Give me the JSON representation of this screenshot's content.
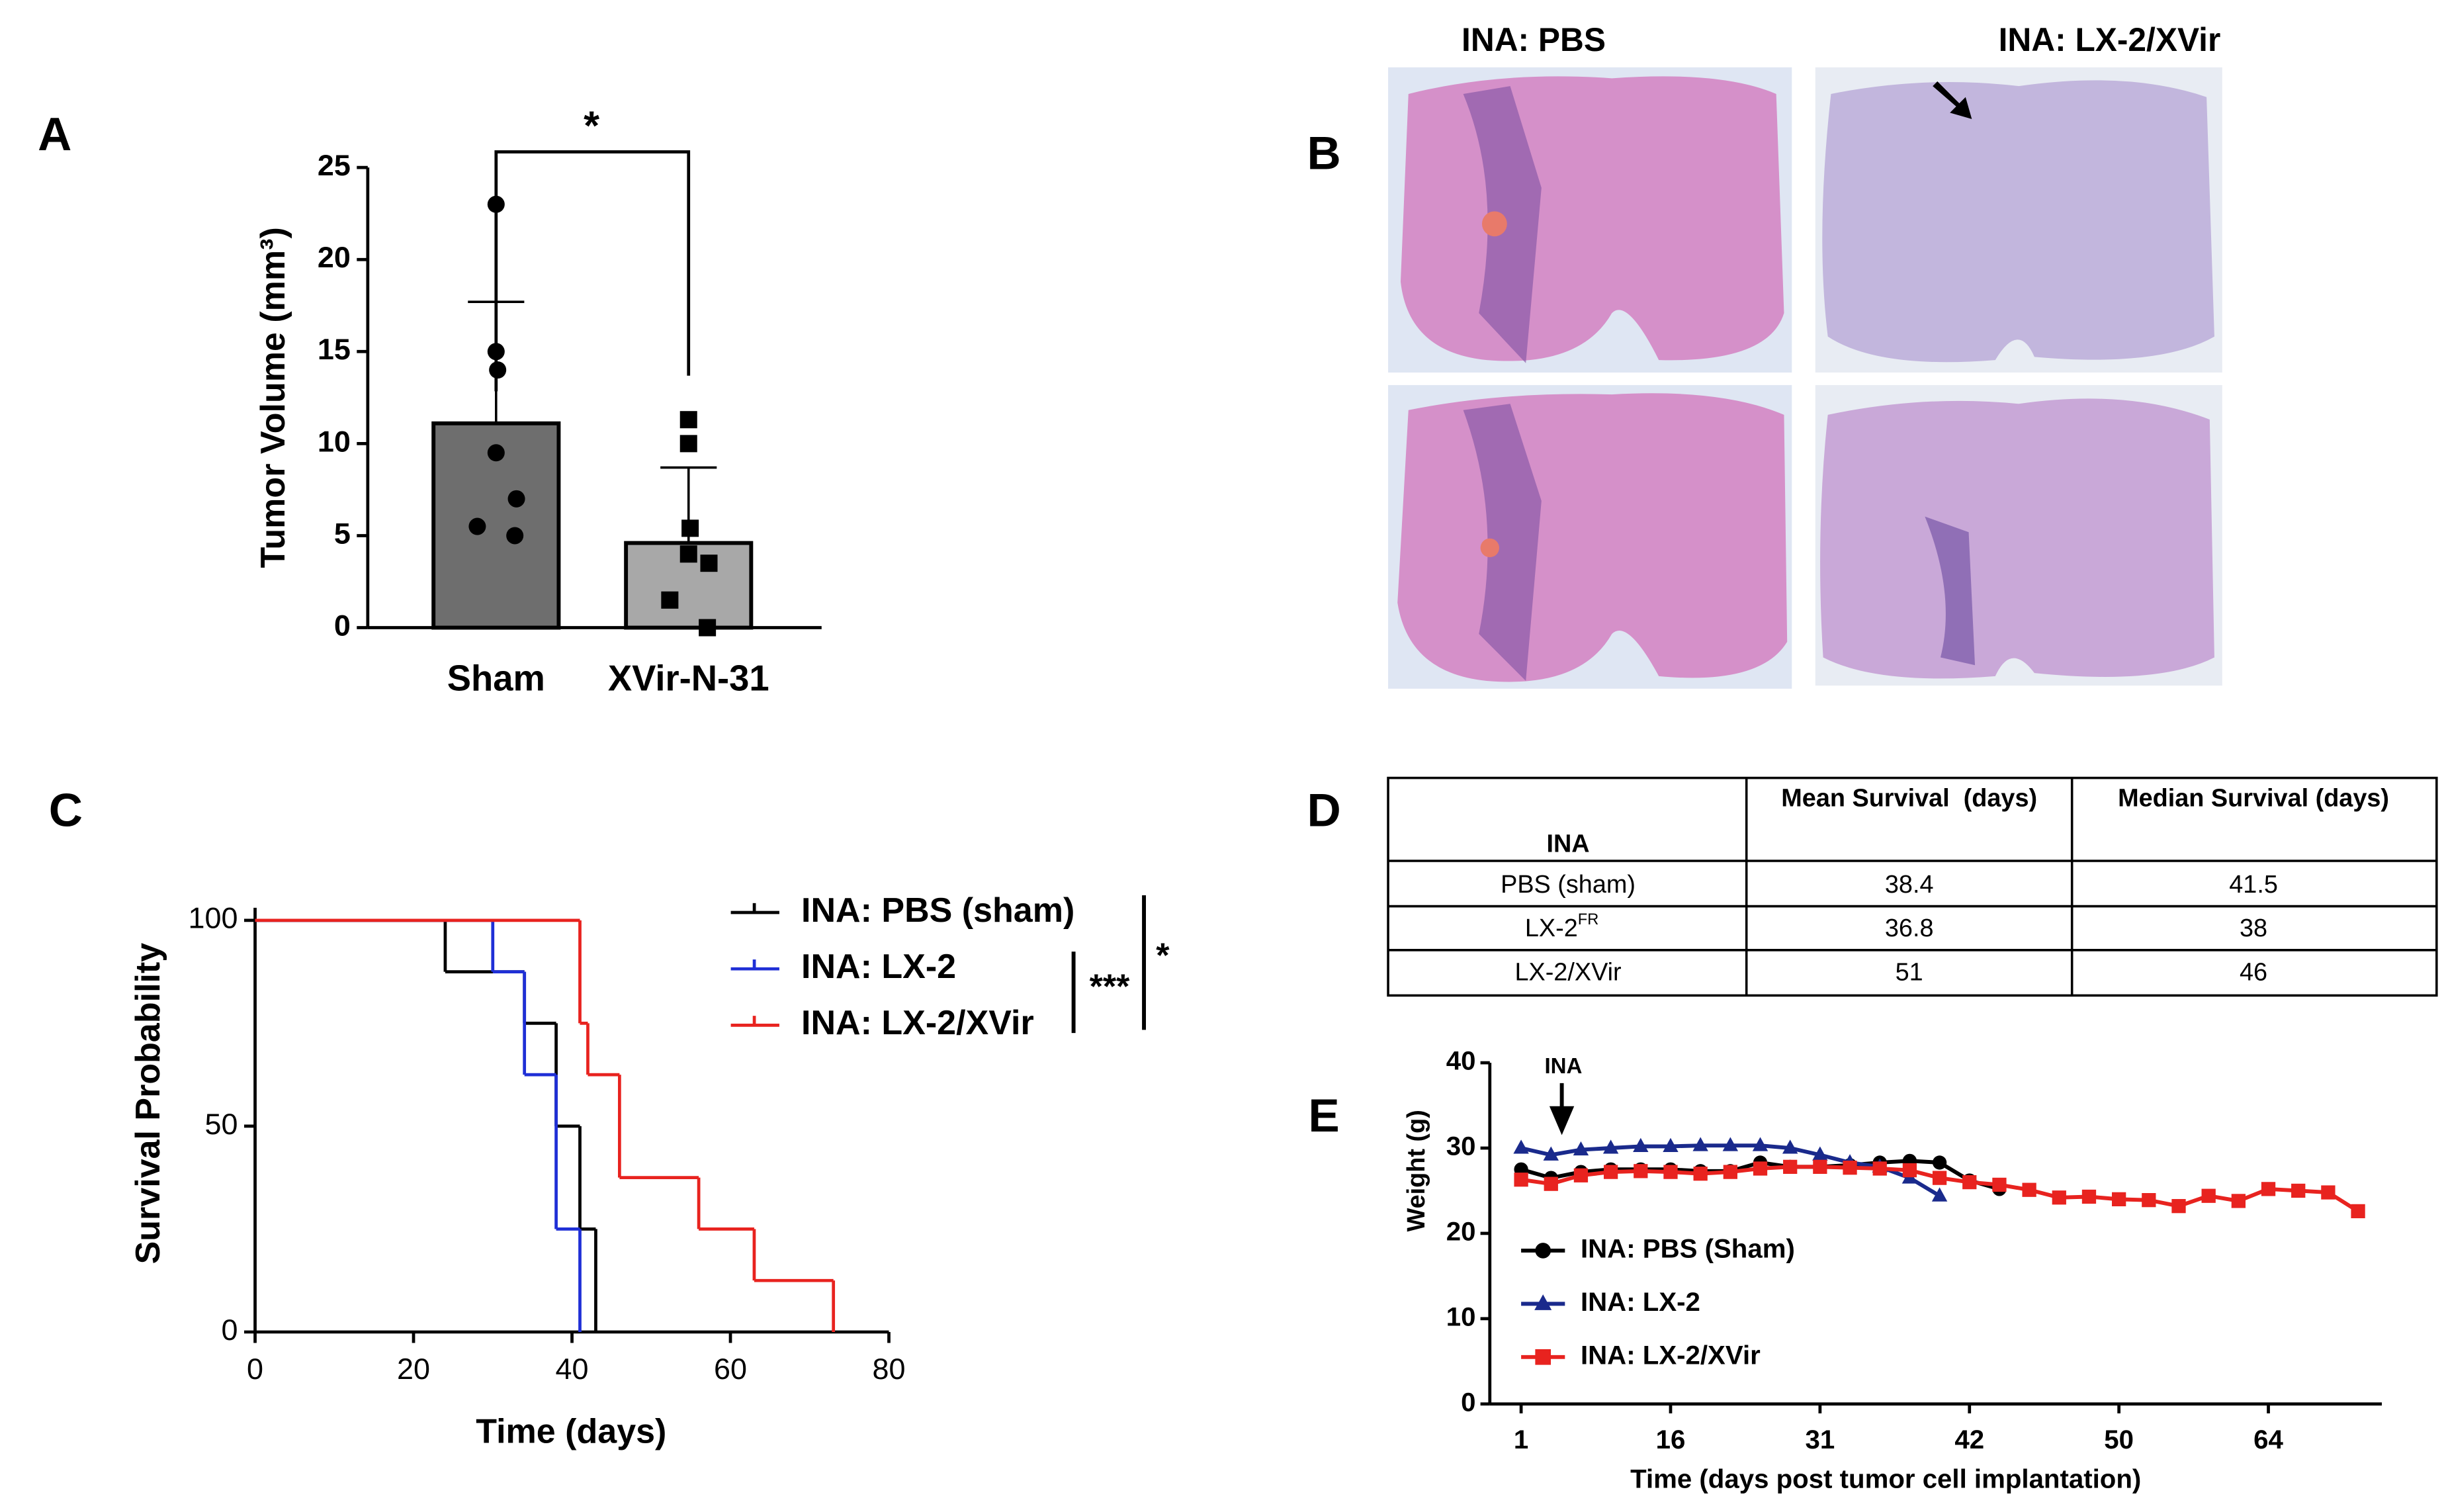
{
  "panel_labels": [
    "A",
    "B",
    "C",
    "D",
    "E"
  ],
  "chart_data": [
    {
      "type": "bar",
      "categories": [
        "Sham",
        "XVir-N-31"
      ],
      "values": [
        11.1,
        4.6
      ],
      "errors": [
        6.6,
        4.1
      ],
      "colors": [
        "#6e6e6e",
        "#a8a8a8"
      ],
      "markers": [
        "circle",
        "square"
      ],
      "points": [
        [
          23,
          15,
          14,
          9.5,
          7,
          5.5,
          5
        ],
        [
          11.3,
          10,
          5.4,
          4,
          3.5,
          1.5,
          0
        ]
      ],
      "ylim": [
        0,
        25
      ],
      "yticks": [
        0,
        5,
        10,
        15,
        20,
        25
      ],
      "ylabel": "Tumor Volume (mm³)",
      "significance": "*"
    },
    {
      "type": "step",
      "xlabel": "Time (days)",
      "ylabel": "Survival Probability",
      "xlim": [
        0,
        80
      ],
      "xticks": [
        0,
        20,
        40,
        60,
        80
      ],
      "ylim": [
        0,
        100
      ],
      "yticks": [
        0,
        50,
        100
      ],
      "series": [
        {
          "name": "INA: PBS (sham)",
          "color": "#000000",
          "x": [
            0,
            24,
            34,
            38,
            41,
            43
          ],
          "values": [
            100,
            87.5,
            75,
            50,
            25,
            0
          ]
        },
        {
          "name": "INA: LX-2",
          "color": "#1f2fd6",
          "x": [
            0,
            30,
            34,
            38,
            41
          ],
          "values": [
            100,
            87.5,
            62.5,
            25,
            0
          ]
        },
        {
          "name": "INA: LX-2/XVir",
          "color": "#e8231f",
          "x": [
            0,
            41,
            42,
            46,
            56,
            63,
            73
          ],
          "values": [
            100,
            75,
            62.5,
            37.5,
            25,
            12.5,
            0
          ]
        }
      ],
      "significance": [
        "***",
        "*"
      ]
    },
    {
      "type": "line",
      "xlabel": "Time (days post tumor cell implantation)",
      "ylabel": "Weight (g)",
      "categories": [
        "1",
        null,
        null,
        null,
        null,
        "16",
        null,
        null,
        null,
        null,
        "31",
        null,
        null,
        null,
        null,
        "42",
        null,
        null,
        null,
        null,
        "50",
        null,
        null,
        null,
        null,
        "64",
        null,
        null,
        null
      ],
      "ylim": [
        0,
        40
      ],
      "yticks": [
        0,
        10,
        20,
        30,
        40
      ],
      "annotation": "INA",
      "series": [
        {
          "name": "INA: PBS (Sham)",
          "color": "#000000",
          "marker": "circle",
          "values": [
            27.5,
            26.5,
            27.2,
            27.5,
            27.5,
            27.5,
            27.3,
            27.3,
            28.3,
            27.8,
            27.8,
            28,
            28.3,
            28.5,
            28.3,
            26.2,
            25.2,
            null,
            null,
            null,
            null,
            null,
            null,
            null,
            null,
            null,
            null,
            null,
            null
          ]
        },
        {
          "name": "INA: LX-2",
          "color": "#1a2a8c",
          "marker": "triangle",
          "values": [
            30,
            29.2,
            29.8,
            30,
            30.2,
            30.2,
            30.3,
            30.3,
            30.3,
            30,
            29.2,
            28.3,
            27.8,
            26.5,
            24.4,
            null,
            null,
            null,
            null,
            null,
            null,
            null,
            null,
            null,
            null,
            null,
            null,
            null,
            null
          ]
        },
        {
          "name": "INA: LX-2/XVir",
          "color": "#e8231f",
          "marker": "square",
          "values": [
            26.3,
            25.8,
            26.8,
            27.2,
            27.3,
            27.2,
            27,
            27.2,
            27.6,
            27.8,
            27.8,
            27.7,
            27.6,
            27.4,
            26.5,
            26,
            25.7,
            25.1,
            24.2,
            24.3,
            24,
            23.9,
            23.2,
            24.4,
            23.8,
            25.2,
            25,
            24.8,
            22.6
          ]
        }
      ]
    }
  ],
  "images": {
    "titles": [
      "INA: PBS",
      "INA: LX-2/XVir"
    ]
  },
  "table": {
    "header": [
      "INA",
      "Mean Survival  (days)",
      "Median Survival (days)"
    ],
    "rows": [
      [
        "PBS (sham)",
        "38.4",
        "41.5"
      ],
      [
        [
          "LX-2",
          "FR"
        ],
        "36.8",
        "38"
      ],
      [
        "LX-2/XVir",
        "51",
        "46"
      ]
    ]
  }
}
